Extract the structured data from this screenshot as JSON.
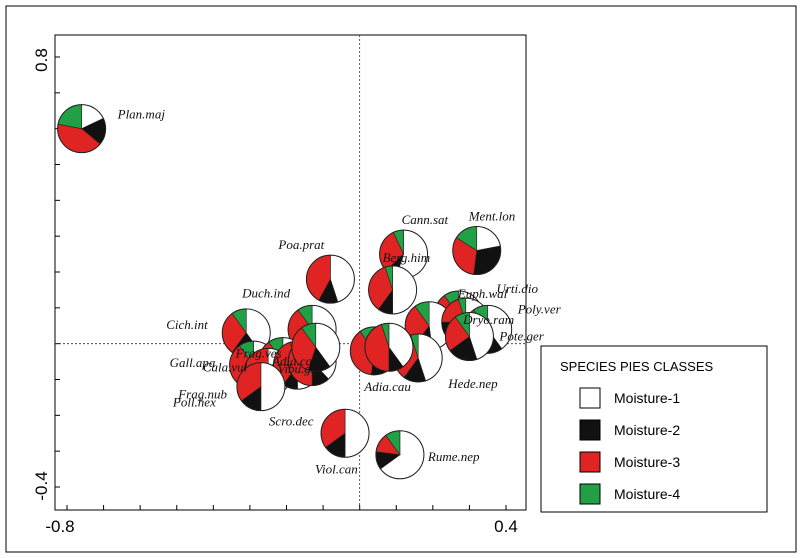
{
  "colors": {
    "moisture1": "#ffffff",
    "moisture2": "#111111",
    "moisture3": "#e02424",
    "moisture4": "#22a046"
  },
  "legend": {
    "title": "SPECIES PIES CLASSES",
    "items": [
      {
        "label": "Moisture-1",
        "color": "#ffffff"
      },
      {
        "label": "Moisture-2",
        "color": "#111111"
      },
      {
        "label": "Moisture-3",
        "color": "#e02424"
      },
      {
        "label": "Moisture-4",
        "color": "#22a046"
      }
    ]
  },
  "chart_data": {
    "type": "scatter",
    "title": "",
    "xlabel": "",
    "ylabel": "",
    "xlim": [
      -0.8,
      0.4
    ],
    "ylim": [
      -0.4,
      0.8
    ],
    "x_ticks": [
      "-0.8",
      "0.4"
    ],
    "y_ticks": [
      "0.8",
      "-0.4"
    ],
    "grid": false,
    "reference_lines": {
      "x": 0,
      "y": 0
    },
    "legend_position": "bottom-right",
    "series_names": [
      "Moisture-1",
      "Moisture-2",
      "Moisture-3",
      "Moisture-4"
    ],
    "species": [
      {
        "label": "Plan.maj",
        "x": -0.76,
        "y": 0.6,
        "slices": [
          0.18,
          0.18,
          0.42,
          0.22
        ]
      },
      {
        "label": "Cann.sat",
        "x": 0.12,
        "y": 0.25,
        "slices": [
          0.55,
          0.08,
          0.3,
          0.07
        ]
      },
      {
        "label": "Ment.lon",
        "x": 0.32,
        "y": 0.26,
        "slices": [
          0.22,
          0.3,
          0.32,
          0.16
        ]
      },
      {
        "label": "Berg.him",
        "x": 0.09,
        "y": 0.15,
        "slices": [
          0.5,
          0.1,
          0.35,
          0.05
        ]
      },
      {
        "label": "Poa.prat",
        "x": -0.08,
        "y": 0.18,
        "slices": [
          0.45,
          0.13,
          0.42,
          0.0
        ]
      },
      {
        "label": "Urti.dio",
        "x": 0.27,
        "y": 0.08,
        "slices": [
          0.5,
          0.1,
          0.3,
          0.1
        ]
      },
      {
        "label": "Dryo.ram",
        "x": 0.19,
        "y": 0.05,
        "slices": [
          0.48,
          0.12,
          0.3,
          0.1
        ]
      },
      {
        "label": "Euph.wal",
        "x": 0.29,
        "y": 0.06,
        "slices": [
          0.6,
          0.15,
          0.2,
          0.05
        ]
      },
      {
        "label": "Poly.ver",
        "x": 0.35,
        "y": 0.04,
        "slices": [
          0.4,
          0.2,
          0.3,
          0.1
        ]
      },
      {
        "label": "Pote.ger",
        "x": 0.3,
        "y": 0.02,
        "slices": [
          0.45,
          0.2,
          0.25,
          0.1
        ]
      },
      {
        "label": "Cich.int",
        "x": -0.31,
        "y": 0.03,
        "slices": [
          0.4,
          0.2,
          0.3,
          0.1
        ]
      },
      {
        "label": "Duch.ind",
        "x": -0.13,
        "y": 0.04,
        "slices": [
          0.45,
          0.2,
          0.25,
          0.1
        ]
      },
      {
        "label": "Gall.apa",
        "x": -0.29,
        "y": -0.06,
        "slices": [
          0.35,
          0.15,
          0.4,
          0.1
        ]
      },
      {
        "label": "Cala.vul",
        "x": -0.21,
        "y": -0.05,
        "slices": [
          0.4,
          0.1,
          0.4,
          0.1
        ]
      },
      {
        "label": "Frag.nub",
        "x": -0.25,
        "y": -0.08,
        "slices": [
          0.45,
          0.15,
          0.4,
          0.0
        ]
      },
      {
        "label": "Vibu.gra",
        "x": -0.17,
        "y": -0.06,
        "slices": [
          0.5,
          0.1,
          0.35,
          0.05
        ]
      },
      {
        "label": "Adia.cap",
        "x": -0.13,
        "y": -0.05,
        "slices": [
          0.38,
          0.12,
          0.5,
          0.0
        ]
      },
      {
        "label": "Poll.hex",
        "x": -0.27,
        "y": -0.12,
        "slices": [
          0.5,
          0.15,
          0.35,
          0.0
        ]
      },
      {
        "label": "Frag.ves",
        "x": -0.12,
        "y": -0.01,
        "slices": [
          0.4,
          0.15,
          0.35,
          0.1
        ]
      },
      {
        "label": "Adia.cau",
        "x": 0.04,
        "y": -0.02,
        "slices": [
          0.42,
          0.1,
          0.38,
          0.1
        ]
      },
      {
        "label": "Hede.nep",
        "x": 0.16,
        "y": -0.04,
        "slices": [
          0.45,
          0.15,
          0.35,
          0.05
        ]
      },
      {
        "label": "Scro.dec",
        "x": 0.08,
        "y": -0.01,
        "slices": [
          0.4,
          0.1,
          0.45,
          0.05
        ]
      },
      {
        "label": "Viol.can",
        "x": -0.04,
        "y": -0.25,
        "slices": [
          0.5,
          0.15,
          0.35,
          0.0
        ]
      },
      {
        "label": "Rume.nep",
        "x": 0.11,
        "y": -0.31,
        "slices": [
          0.65,
          0.12,
          0.13,
          0.1
        ]
      }
    ]
  }
}
